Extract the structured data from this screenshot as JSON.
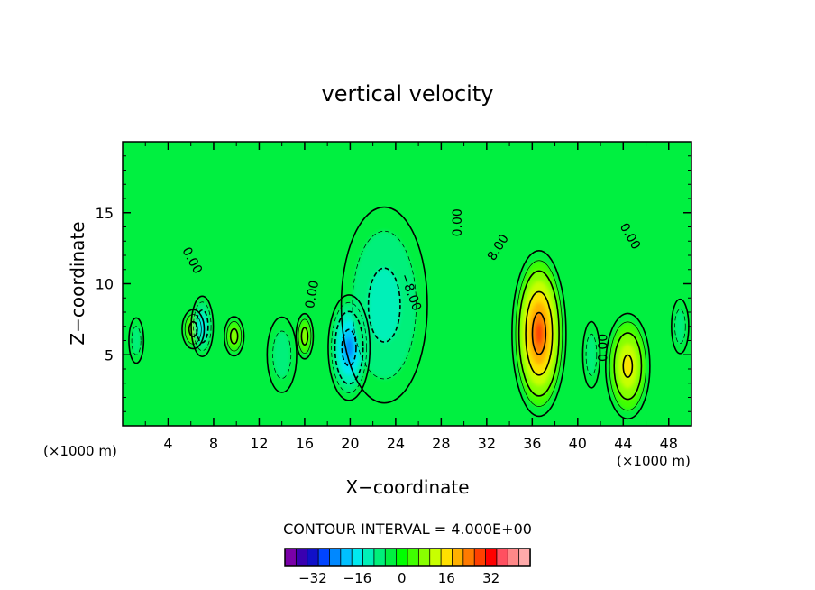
{
  "chart_data": {
    "type": "heatmap",
    "title": "vertical velocity",
    "xlabel": "X−coordinate",
    "ylabel": "Z−coordinate",
    "x_unit": "(×1000 m)",
    "x_unit_right": "(×1000 m)",
    "xlim": [
      0,
      50
    ],
    "ylim": [
      0,
      20
    ],
    "x_ticks": [
      4,
      8,
      12,
      16,
      20,
      24,
      28,
      32,
      36,
      40,
      44,
      48
    ],
    "y_ticks": [
      5,
      10,
      15
    ],
    "contour_interval_text": "CONTOUR INTERVAL =  4.000E+00",
    "contour_interval": 4,
    "contour_labels": [
      {
        "text": "0.00",
        "x": 5.8,
        "y": 11.5,
        "rot": 62
      },
      {
        "text": "0.00",
        "x": 17.0,
        "y": 9.2,
        "rot": -80
      },
      {
        "text": "−8.00",
        "x": 25.0,
        "y": 9.3,
        "rot": 70
      },
      {
        "text": "0.00",
        "x": 29.8,
        "y": 14.3,
        "rot": -90
      },
      {
        "text": "8.00",
        "x": 33.3,
        "y": 12.4,
        "rot": -58
      },
      {
        "text": "0.00",
        "x": 44.3,
        "y": 13.2,
        "rot": 60
      },
      {
        "text": "0.00",
        "x": 42.6,
        "y": 5.5,
        "rot": -90
      }
    ],
    "features": [
      {
        "x": 36.6,
        "y": 6.5,
        "rx": 2.2,
        "ry": 5.5,
        "peak": 30
      },
      {
        "x": 44.4,
        "y": 4.2,
        "rx": 1.8,
        "ry": 3.5,
        "peak": 17
      },
      {
        "x": 6.2,
        "y": 6.8,
        "rx": 0.9,
        "ry": 1.3,
        "peak": 10
      },
      {
        "x": 9.8,
        "y": 6.3,
        "rx": 0.8,
        "ry": 1.3,
        "peak": 8
      },
      {
        "x": 16.0,
        "y": 6.3,
        "rx": 0.7,
        "ry": 1.5,
        "peak": 8
      },
      {
        "x": 19.9,
        "y": 5.5,
        "rx": 1.7,
        "ry": 3.5,
        "peak": -20
      },
      {
        "x": 23.0,
        "y": 8.5,
        "rx": 3.5,
        "ry": 6.5,
        "peak": -8
      },
      {
        "x": 7.0,
        "y": 7.0,
        "rx": 0.9,
        "ry": 2.0,
        "peak": -12
      },
      {
        "x": 14.0,
        "y": 5.0,
        "rx": 1.2,
        "ry": 2.5,
        "peak": -5
      },
      {
        "x": 41.2,
        "y": 5.0,
        "rx": 0.7,
        "ry": 2.2,
        "peak": -7
      },
      {
        "x": 1.2,
        "y": 6.0,
        "rx": 0.6,
        "ry": 1.5,
        "peak": -4
      },
      {
        "x": 49.0,
        "y": 7.0,
        "rx": 0.7,
        "ry": 1.8,
        "peak": -4
      }
    ],
    "colorbar": {
      "ticks": [
        -32,
        -16,
        0,
        16,
        32
      ],
      "colors": [
        "#7a00a8",
        "#3a00b0",
        "#1010c8",
        "#0044ff",
        "#0088ff",
        "#00c0ff",
        "#00eaf0",
        "#00f0b8",
        "#00f07a",
        "#00f040",
        "#00ff00",
        "#40ff00",
        "#88ff00",
        "#c8ff00",
        "#ffe000",
        "#ffb000",
        "#ff7a00",
        "#ff4000",
        "#ff0000",
        "#ff5060",
        "#ff8888",
        "#ffaaaa"
      ]
    },
    "grid": false,
    "legend": "bottom"
  }
}
